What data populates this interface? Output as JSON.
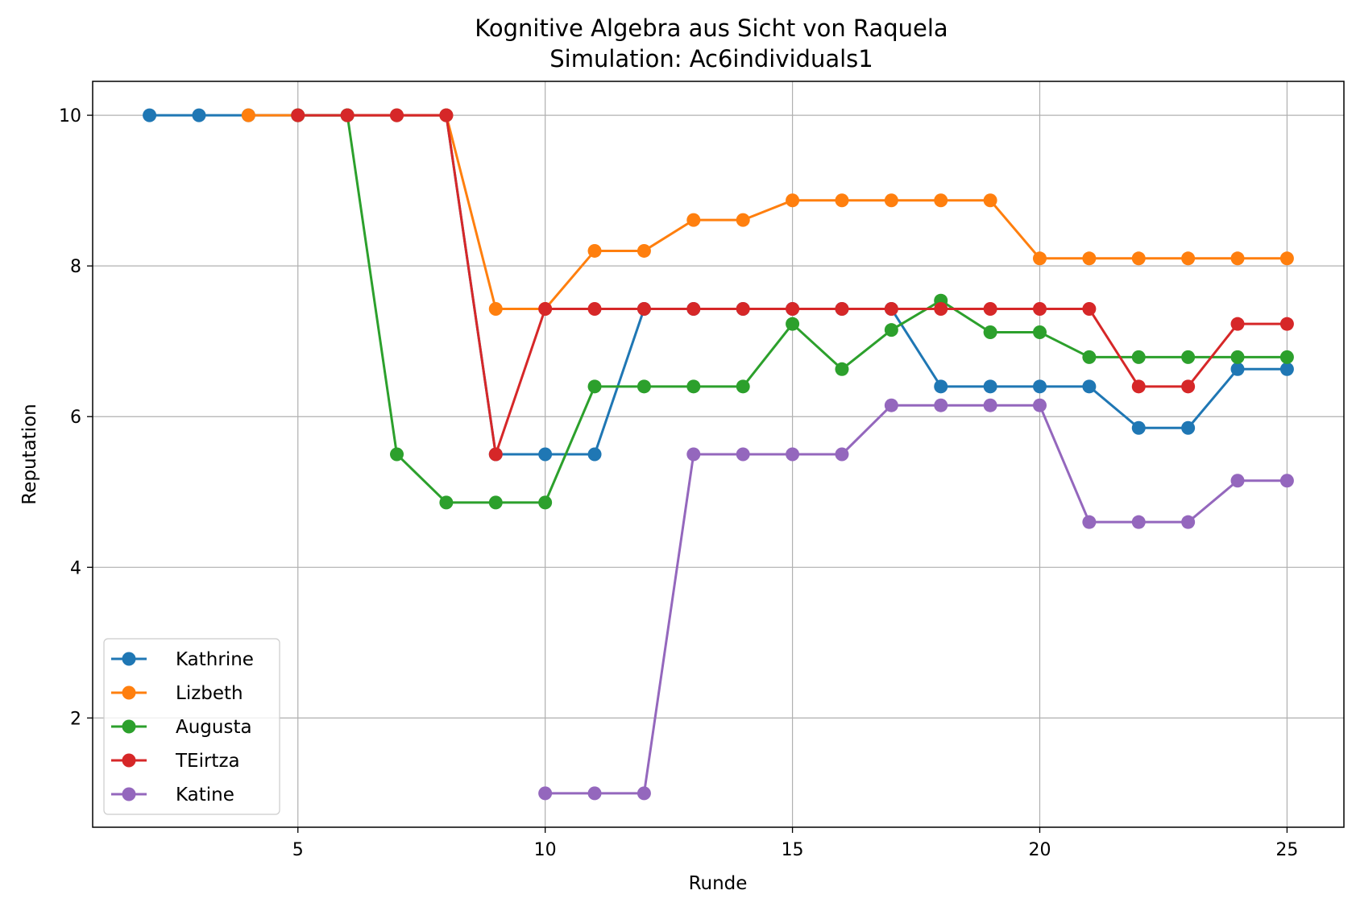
{
  "chart_data": {
    "type": "line",
    "title": "Kognitive Algebra aus Sicht von Raquela",
    "subtitle": "Simulation: Ac6individuals1",
    "xlabel": "Runde",
    "ylabel": "Reputation",
    "xlim": [
      0.85,
      26.15
    ],
    "ylim": [
      0.55,
      10.45
    ],
    "xticks": [
      5,
      10,
      15,
      20,
      25
    ],
    "yticks": [
      2,
      4,
      6,
      8,
      10
    ],
    "grid": true,
    "legend_position": "lower-left",
    "series": [
      {
        "name": "Kathrine",
        "color": "#1f77b4",
        "x": [
          2,
          3,
          4,
          5,
          6,
          7,
          8,
          9,
          10,
          11,
          12,
          13,
          14,
          15,
          16,
          17,
          18,
          19,
          20,
          21,
          22,
          23,
          24,
          25
        ],
        "y": [
          10,
          10,
          10,
          10,
          10,
          10,
          10,
          5.5,
          5.5,
          5.5,
          7.43,
          7.43,
          7.43,
          7.43,
          7.43,
          7.43,
          6.4,
          6.4,
          6.4,
          6.4,
          5.85,
          5.85,
          6.63,
          6.63
        ]
      },
      {
        "name": "Lizbeth",
        "color": "#ff7f0e",
        "x": [
          4,
          5,
          6,
          7,
          8,
          9,
          10,
          11,
          12,
          13,
          14,
          15,
          16,
          17,
          18,
          19,
          20,
          21,
          22,
          23,
          24,
          25
        ],
        "y": [
          10,
          10,
          10,
          10,
          10,
          7.43,
          7.43,
          8.2,
          8.2,
          8.61,
          8.61,
          8.87,
          8.87,
          8.87,
          8.87,
          8.87,
          8.1,
          8.1,
          8.1,
          8.1,
          8.1,
          8.1
        ]
      },
      {
        "name": "Augusta",
        "color": "#2ca02c",
        "x": [
          5,
          6,
          7,
          8,
          9,
          10,
          11,
          12,
          13,
          14,
          15,
          16,
          17,
          18,
          19,
          20,
          21,
          22,
          23,
          24,
          25
        ],
        "y": [
          10,
          10,
          5.5,
          4.86,
          4.86,
          4.86,
          6.4,
          6.4,
          6.4,
          6.4,
          7.23,
          6.63,
          7.15,
          7.54,
          7.12,
          7.12,
          6.79,
          6.79,
          6.79,
          6.79,
          6.79
        ]
      },
      {
        "name": "TEirtza",
        "color": "#d62728",
        "x": [
          5,
          6,
          7,
          8,
          9,
          10,
          11,
          12,
          13,
          14,
          15,
          16,
          17,
          18,
          19,
          20,
          21,
          22,
          23,
          24,
          25
        ],
        "y": [
          10,
          10,
          10,
          10,
          5.5,
          7.43,
          7.43,
          7.43,
          7.43,
          7.43,
          7.43,
          7.43,
          7.43,
          7.43,
          7.43,
          7.43,
          7.43,
          6.4,
          6.4,
          7.23,
          7.23
        ]
      },
      {
        "name": "Katine",
        "color": "#9467bd",
        "x": [
          10,
          11,
          12,
          13,
          14,
          15,
          16,
          17,
          18,
          19,
          20,
          21,
          22,
          23,
          24,
          25
        ],
        "y": [
          1.0,
          1.0,
          1.0,
          5.5,
          5.5,
          5.5,
          5.5,
          6.15,
          6.15,
          6.15,
          6.15,
          4.6,
          4.6,
          4.6,
          5.15,
          5.15
        ]
      }
    ]
  }
}
